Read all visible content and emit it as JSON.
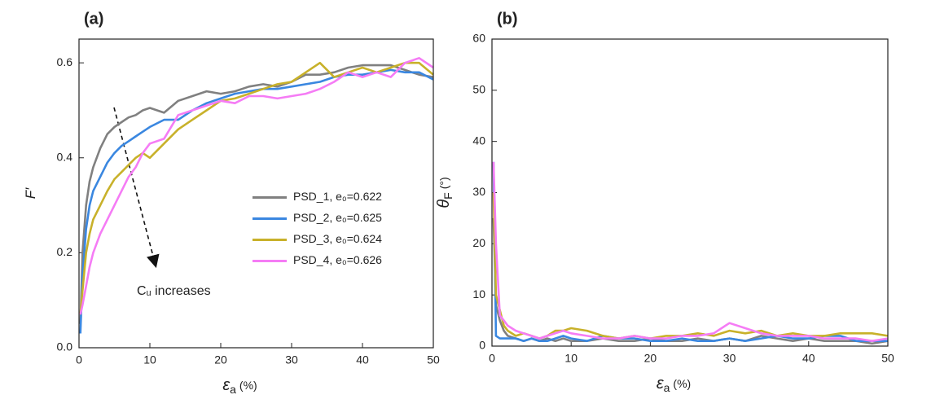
{
  "chart_data": [
    {
      "type": "line",
      "title": "(a)",
      "x_label": {
        "symbol": "ε",
        "sub": "a",
        "unit": "(%)"
      },
      "y_label": "F′",
      "annotation": "Cᵤ increases",
      "legend": "center right",
      "x": [
        0.2,
        0.5,
        1,
        1.5,
        2,
        3,
        4,
        5,
        6,
        7,
        8,
        9,
        10,
        12,
        14,
        16,
        18,
        20,
        22,
        24,
        26,
        28,
        30,
        32,
        34,
        36,
        38,
        40,
        42,
        44,
        46,
        48,
        50
      ],
      "xlim": [
        0,
        50
      ],
      "xticks": [
        0,
        10,
        20,
        30,
        40,
        50
      ],
      "ylim": [
        0,
        0.65
      ],
      "yticks": [
        {
          "value": 0,
          "label": "0.0"
        },
        0.2,
        0.4,
        0.6
      ],
      "series": [
        {
          "name": "PSD_1, e₀=0.622",
          "color": "#808080",
          "values": [
            0.05,
            0.2,
            0.3,
            0.35,
            0.38,
            0.42,
            0.45,
            0.465,
            0.475,
            0.485,
            0.49,
            0.5,
            0.505,
            0.495,
            0.52,
            0.53,
            0.54,
            0.535,
            0.54,
            0.55,
            0.555,
            0.55,
            0.56,
            0.575,
            0.575,
            0.58,
            0.59,
            0.595,
            0.595,
            0.595,
            0.585,
            0.575,
            0.57
          ]
        },
        {
          "name": "PSD_2, e₀=0.625",
          "color": "#3a87e0",
          "values": [
            0.03,
            0.15,
            0.25,
            0.3,
            0.33,
            0.36,
            0.39,
            0.41,
            0.425,
            0.435,
            0.445,
            0.455,
            0.465,
            0.48,
            0.48,
            0.5,
            0.515,
            0.525,
            0.535,
            0.54,
            0.545,
            0.545,
            0.55,
            0.555,
            0.56,
            0.57,
            0.575,
            0.575,
            0.58,
            0.585,
            0.58,
            0.58,
            0.565
          ]
        },
        {
          "name": "PSD_3, e₀=0.624",
          "color": "#c8b12a",
          "values": [
            0.07,
            0.12,
            0.2,
            0.24,
            0.27,
            0.3,
            0.33,
            0.355,
            0.37,
            0.385,
            0.4,
            0.41,
            0.4,
            0.43,
            0.46,
            0.48,
            0.5,
            0.52,
            0.525,
            0.535,
            0.545,
            0.555,
            0.56,
            0.58,
            0.6,
            0.57,
            0.58,
            0.59,
            0.58,
            0.59,
            0.6,
            0.6,
            0.575
          ]
        },
        {
          "name": "PSD_4, e₀=0.626",
          "color": "#f57cf5",
          "values": [
            0.07,
            0.09,
            0.13,
            0.17,
            0.2,
            0.24,
            0.27,
            0.3,
            0.33,
            0.36,
            0.38,
            0.41,
            0.43,
            0.44,
            0.49,
            0.5,
            0.51,
            0.52,
            0.515,
            0.53,
            0.53,
            0.525,
            0.53,
            0.535,
            0.545,
            0.56,
            0.58,
            0.57,
            0.58,
            0.57,
            0.6,
            0.61,
            0.59
          ]
        }
      ]
    },
    {
      "type": "line",
      "title": "(b)",
      "x_label": {
        "symbol": "ε",
        "sub": "a",
        "unit": "(%)"
      },
      "y_label": {
        "symbol": "θ",
        "sub": "F",
        "unit": "(°)"
      },
      "x": [
        0.2,
        0.5,
        1,
        1.5,
        2,
        3,
        4,
        5,
        6,
        7,
        8,
        9,
        10,
        12,
        14,
        16,
        18,
        20,
        22,
        24,
        26,
        28,
        30,
        32,
        34,
        36,
        38,
        40,
        42,
        44,
        46,
        48,
        50
      ],
      "xlim": [
        0,
        50
      ],
      "xticks": [
        0,
        10,
        20,
        30,
        40,
        50
      ],
      "ylim": [
        0,
        60
      ],
      "yticks": [
        0,
        10,
        20,
        30,
        40,
        50,
        60
      ],
      "series": [
        {
          "color": "#808080",
          "values": [
            25,
            8,
            5,
            3,
            2,
            1.5,
            1,
            1.5,
            1,
            1.5,
            1,
            1.5,
            1,
            1,
            1.5,
            1,
            1,
            1.5,
            1,
            1,
            1.5,
            1,
            1.5,
            1,
            2,
            1.5,
            1,
            1.5,
            1,
            1,
            1,
            0.5,
            1
          ]
        },
        {
          "color": "#3a87e0",
          "values": [
            36,
            2,
            1.5,
            1.5,
            1.5,
            1.5,
            1,
            1.5,
            1,
            1,
            1.5,
            2,
            1.5,
            1,
            2,
            1.5,
            1.5,
            1,
            1,
            1.5,
            1,
            1,
            1.5,
            1,
            1.5,
            2,
            1.5,
            1.5,
            2,
            2,
            1,
            1,
            1
          ]
        },
        {
          "color": "#c8b12a",
          "values": [
            30,
            10,
            7,
            4,
            3,
            2,
            2.5,
            2,
            1.5,
            2,
            3,
            3,
            3.5,
            3,
            2,
            1.5,
            2,
            1.5,
            2,
            2,
            2.5,
            2,
            3,
            2.5,
            3,
            2,
            2.5,
            2,
            2,
            2.5,
            2.5,
            2.5,
            2
          ]
        },
        {
          "color": "#f57cf5",
          "values": [
            36,
            20,
            6,
            5,
            4,
            3,
            2.5,
            2,
            1.5,
            2,
            2.5,
            3,
            2.5,
            2,
            1.5,
            1.5,
            2,
            1.5,
            1.5,
            2,
            2,
            2.5,
            4.5,
            3.5,
            2.5,
            2,
            2,
            2,
            1.5,
            1.5,
            1.5,
            1,
            1.5
          ]
        }
      ]
    }
  ]
}
